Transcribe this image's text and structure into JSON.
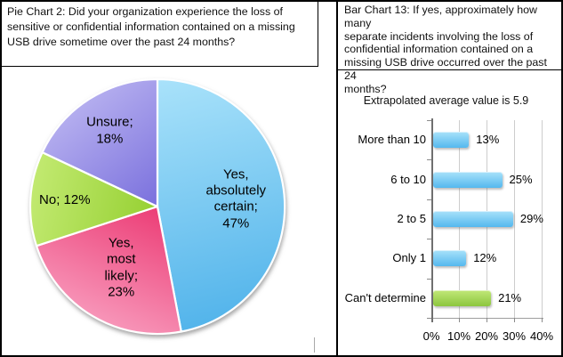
{
  "left_panel": {
    "title_display": "Pie Chart 2:  Did your organization experience the loss of\nsensitive or confidential information contained on a missing\nUSB drive sometime over the past 24 months?"
  },
  "right_panel": {
    "title_display": "Bar Chart 13: If yes, approximately how many\nseparate incidents involving the loss of\nconfidential information contained on a\nmissing USB drive occurred over the past 24\nmonths?",
    "subtitle": "Extrapolated average value is 5.9"
  },
  "chart_data": [
    {
      "type": "pie",
      "title": "Pie Chart 2: Did your organization experience the loss of sensitive or confidential information contained on a missing USB drive sometime over the past 24 months?",
      "labels": [
        "Yes, absolutely certain",
        "Yes, most likely",
        "No",
        "Unsure"
      ],
      "values": [
        47,
        23,
        12,
        18
      ],
      "unit": "%",
      "start_angle": "12 o'clock",
      "direction": "clockwise",
      "colors": [
        "#5bbaee",
        "#ee4d81",
        "#9ed33f",
        "#8a81e3"
      ],
      "colors_light": [
        "#a9e2fa",
        "#f9a2c2",
        "#c3ea72",
        "#bcb6f1"
      ],
      "colors_dark": [
        "#4fb2ea",
        "#ec4078",
        "#97d134",
        "#7a70dd"
      ],
      "slice_labels_display": [
        "Yes,\nabsolutely\ncertain;\n47%",
        "Yes,\nmost\nlikely;\n23%",
        "No; 12%",
        "Unsure;\n18%"
      ]
    },
    {
      "type": "bar",
      "orientation": "horizontal",
      "title": "Bar Chart 13: If yes, approximately how many separate incidents involving the loss of confidential information contained on a missing USB drive occurred over the past 24 months?",
      "subtitle": "Extrapolated average value is 5.9",
      "categories": [
        "More than 10",
        "6 to 10",
        "2 to 5",
        "Only 1",
        "Can't determine"
      ],
      "values": [
        13,
        25,
        29,
        12,
        21
      ],
      "value_labels": [
        "13%",
        "25%",
        "29%",
        "12%",
        "21%"
      ],
      "unit": "%",
      "bar_colors": [
        "#5bbaee",
        "#5bbaee",
        "#5bbaee",
        "#5bbaee",
        "#8dc63f"
      ],
      "bar_colors_light": [
        "#a9e2fa",
        "#a9e2fa",
        "#a9e2fa",
        "#a9e2fa",
        "#c1e878"
      ],
      "bar_colors_dark": [
        "#55b8ee",
        "#55b8ee",
        "#55b8ee",
        "#55b8ee",
        "#8cc63e"
      ],
      "x_ticks": [
        "0%",
        "10%",
        "20%",
        "30%",
        "40%"
      ],
      "xlim": [
        0,
        40
      ],
      "grid": true,
      "legend": "none"
    }
  ]
}
